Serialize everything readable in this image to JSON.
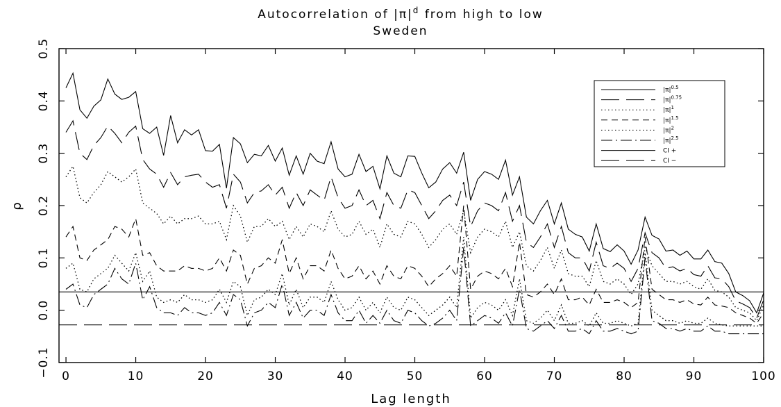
{
  "chart_data": {
    "type": "line",
    "title": "Autocorrelation of |π|",
    "title_superscript": "d",
    "title_suffix": " from high to low",
    "subtitle": "Sweden",
    "xlabel": "Lag length",
    "ylabel": "ρ",
    "xlim": [
      -1,
      100
    ],
    "ylim": [
      -0.1,
      0.5
    ],
    "xticks": [
      0,
      10,
      20,
      30,
      40,
      50,
      60,
      70,
      80,
      90,
      100
    ],
    "xtick_labels": [
      "0",
      "10",
      "20",
      "30",
      "40",
      "50",
      "60",
      "70",
      "80",
      "90",
      "100"
    ],
    "yticks": [
      -0.1,
      0.0,
      0.1,
      0.2,
      0.3,
      0.4,
      0.5
    ],
    "ytick_labels": [
      "−0.1",
      "0.0",
      "0.1",
      "0.2",
      "0.3",
      "0.4",
      "0.5"
    ],
    "grid": false,
    "legend_position": "top-right",
    "x_start": 0,
    "series": [
      {
        "name": "|π|",
        "name_sup": "0.5",
        "dash": "solid",
        "values": [
          0.425,
          0.453,
          0.383,
          0.367,
          0.39,
          0.402,
          0.442,
          0.413,
          0.403,
          0.407,
          0.418,
          0.347,
          0.338,
          0.35,
          0.296,
          0.372,
          0.32,
          0.345,
          0.335,
          0.345,
          0.305,
          0.304,
          0.317,
          0.233,
          0.33,
          0.318,
          0.282,
          0.298,
          0.295,
          0.315,
          0.285,
          0.31,
          0.258,
          0.295,
          0.26,
          0.3,
          0.285,
          0.28,
          0.322,
          0.27,
          0.255,
          0.26,
          0.298,
          0.265,
          0.275,
          0.232,
          0.295,
          0.262,
          0.255,
          0.295,
          0.294,
          0.262,
          0.234,
          0.245,
          0.27,
          0.282,
          0.262,
          0.302,
          0.21,
          0.25,
          0.265,
          0.26,
          0.25,
          0.287,
          0.22,
          0.255,
          0.178,
          0.165,
          0.19,
          0.21,
          0.165,
          0.205,
          0.155,
          0.145,
          0.14,
          0.113,
          0.165,
          0.118,
          0.112,
          0.125,
          0.113,
          0.088,
          0.115,
          0.178,
          0.143,
          0.136,
          0.113,
          0.115,
          0.105,
          0.113,
          0.098,
          0.098,
          0.115,
          0.093,
          0.09,
          0.07,
          0.035,
          0.028,
          0.018,
          -0.005,
          0.033
        ]
      },
      {
        "name": "|π|",
        "name_sup": "0.75",
        "dash": "longdash",
        "values": [
          0.34,
          0.362,
          0.3,
          0.288,
          0.315,
          0.33,
          0.352,
          0.338,
          0.32,
          0.34,
          0.352,
          0.288,
          0.27,
          0.26,
          0.235,
          0.263,
          0.24,
          0.255,
          0.258,
          0.26,
          0.245,
          0.235,
          0.24,
          0.195,
          0.26,
          0.245,
          0.205,
          0.225,
          0.228,
          0.24,
          0.22,
          0.235,
          0.195,
          0.225,
          0.2,
          0.23,
          0.22,
          0.21,
          0.255,
          0.215,
          0.195,
          0.2,
          0.23,
          0.2,
          0.21,
          0.175,
          0.225,
          0.2,
          0.195,
          0.23,
          0.225,
          0.2,
          0.175,
          0.19,
          0.21,
          0.22,
          0.2,
          0.245,
          0.16,
          0.19,
          0.205,
          0.2,
          0.19,
          0.225,
          0.17,
          0.2,
          0.13,
          0.12,
          0.14,
          0.165,
          0.12,
          0.16,
          0.11,
          0.1,
          0.1,
          0.075,
          0.13,
          0.085,
          0.08,
          0.09,
          0.08,
          0.055,
          0.08,
          0.148,
          0.11,
          0.1,
          0.08,
          0.083,
          0.075,
          0.08,
          0.068,
          0.065,
          0.085,
          0.062,
          0.06,
          0.045,
          0.018,
          0.012,
          0.005,
          -0.015,
          0.02
        ]
      },
      {
        "name": "|π|",
        "name_sup": "1",
        "dash": "dotted",
        "values": [
          0.255,
          0.275,
          0.215,
          0.205,
          0.225,
          0.24,
          0.265,
          0.255,
          0.245,
          0.255,
          0.27,
          0.205,
          0.195,
          0.185,
          0.165,
          0.18,
          0.165,
          0.175,
          0.175,
          0.18,
          0.165,
          0.165,
          0.17,
          0.135,
          0.2,
          0.18,
          0.13,
          0.16,
          0.16,
          0.175,
          0.16,
          0.17,
          0.135,
          0.16,
          0.14,
          0.165,
          0.16,
          0.15,
          0.19,
          0.155,
          0.14,
          0.145,
          0.17,
          0.145,
          0.155,
          0.12,
          0.165,
          0.145,
          0.14,
          0.17,
          0.165,
          0.145,
          0.12,
          0.135,
          0.155,
          0.165,
          0.145,
          0.19,
          0.11,
          0.14,
          0.155,
          0.15,
          0.14,
          0.17,
          0.12,
          0.15,
          0.085,
          0.075,
          0.095,
          0.12,
          0.08,
          0.115,
          0.07,
          0.065,
          0.065,
          0.045,
          0.095,
          0.055,
          0.05,
          0.06,
          0.05,
          0.03,
          0.05,
          0.12,
          0.085,
          0.07,
          0.055,
          0.055,
          0.05,
          0.055,
          0.045,
          0.04,
          0.06,
          0.038,
          0.035,
          0.025,
          0.005,
          0.0,
          -0.005,
          -0.02,
          0.01
        ]
      },
      {
        "name": "|π|",
        "name_sup": "1.5",
        "dash": "dashed",
        "values": [
          0.14,
          0.16,
          0.1,
          0.095,
          0.115,
          0.125,
          0.135,
          0.16,
          0.155,
          0.14,
          0.175,
          0.105,
          0.11,
          0.085,
          0.075,
          0.075,
          0.075,
          0.085,
          0.08,
          0.08,
          0.075,
          0.08,
          0.1,
          0.075,
          0.115,
          0.105,
          0.05,
          0.08,
          0.085,
          0.1,
          0.09,
          0.135,
          0.07,
          0.1,
          0.06,
          0.085,
          0.085,
          0.075,
          0.115,
          0.08,
          0.06,
          0.065,
          0.085,
          0.06,
          0.075,
          0.05,
          0.085,
          0.065,
          0.06,
          0.085,
          0.08,
          0.065,
          0.045,
          0.06,
          0.07,
          0.085,
          0.065,
          0.2,
          0.04,
          0.065,
          0.075,
          0.07,
          0.06,
          0.08,
          0.045,
          0.13,
          0.03,
          0.025,
          0.035,
          0.05,
          0.03,
          0.06,
          0.02,
          0.02,
          0.025,
          0.01,
          0.04,
          0.015,
          0.015,
          0.02,
          0.015,
          0.005,
          0.015,
          0.14,
          0.04,
          0.03,
          0.02,
          0.02,
          0.015,
          0.02,
          0.012,
          0.01,
          0.025,
          0.01,
          0.008,
          0.005,
          -0.005,
          -0.01,
          -0.015,
          -0.025,
          -0.005
        ]
      },
      {
        "name": "|π|",
        "name_sup": "2",
        "dash": "dotted",
        "values": [
          0.08,
          0.09,
          0.04,
          0.035,
          0.06,
          0.07,
          0.08,
          0.105,
          0.09,
          0.075,
          0.11,
          0.055,
          0.075,
          0.025,
          0.015,
          0.02,
          0.015,
          0.03,
          0.02,
          0.02,
          0.015,
          0.02,
          0.04,
          0.015,
          0.055,
          0.045,
          -0.01,
          0.02,
          0.025,
          0.04,
          0.03,
          0.07,
          0.01,
          0.04,
          0.005,
          0.025,
          0.025,
          0.015,
          0.055,
          0.02,
          0.0,
          0.005,
          0.025,
          0.0,
          0.015,
          -0.005,
          0.025,
          0.005,
          0.0,
          0.025,
          0.02,
          0.005,
          -0.01,
          0.0,
          0.01,
          0.025,
          0.005,
          0.14,
          -0.015,
          0.005,
          0.015,
          0.01,
          0.0,
          0.02,
          -0.01,
          0.06,
          -0.02,
          -0.025,
          -0.015,
          0.0,
          -0.02,
          0.01,
          -0.025,
          -0.025,
          -0.02,
          -0.03,
          -0.005,
          -0.025,
          -0.025,
          -0.02,
          -0.025,
          -0.03,
          -0.025,
          0.11,
          0.0,
          -0.01,
          -0.02,
          -0.02,
          -0.025,
          -0.02,
          -0.025,
          -0.025,
          -0.015,
          -0.025,
          -0.028,
          -0.03,
          -0.03,
          -0.03,
          -0.03,
          -0.03,
          -0.03
        ]
      },
      {
        "name": "|π|",
        "name_sup": "2.5",
        "dash": "dashdot",
        "values": [
          0.04,
          0.05,
          0.01,
          0.005,
          0.03,
          0.04,
          0.05,
          0.08,
          0.06,
          0.05,
          0.09,
          0.02,
          0.045,
          0.005,
          -0.005,
          -0.005,
          -0.01,
          0.005,
          -0.005,
          -0.005,
          -0.01,
          -0.005,
          0.015,
          -0.01,
          0.03,
          0.02,
          -0.03,
          -0.005,
          0.0,
          0.015,
          0.005,
          0.05,
          -0.01,
          0.015,
          -0.015,
          0.0,
          0.0,
          -0.01,
          0.03,
          -0.005,
          -0.02,
          -0.02,
          0.0,
          -0.025,
          -0.01,
          -0.025,
          0.0,
          -0.02,
          -0.025,
          0.0,
          -0.005,
          -0.02,
          -0.03,
          -0.025,
          -0.015,
          0.0,
          -0.02,
          0.12,
          -0.03,
          -0.02,
          -0.01,
          -0.015,
          -0.025,
          -0.005,
          -0.03,
          0.04,
          -0.035,
          -0.04,
          -0.03,
          -0.02,
          -0.035,
          -0.01,
          -0.04,
          -0.04,
          -0.035,
          -0.045,
          -0.02,
          -0.04,
          -0.04,
          -0.035,
          -0.04,
          -0.045,
          -0.04,
          0.1,
          -0.02,
          -0.025,
          -0.035,
          -0.035,
          -0.04,
          -0.035,
          -0.04,
          -0.04,
          -0.03,
          -0.04,
          -0.04,
          -0.045,
          -0.045,
          -0.045,
          -0.045,
          -0.045,
          -0.045
        ]
      }
    ],
    "ci_lines": [
      {
        "name": "CI +",
        "value": 0.035,
        "dash": "solid"
      },
      {
        "name": "CI −",
        "value": -0.028,
        "dash": "longdash"
      }
    ]
  }
}
